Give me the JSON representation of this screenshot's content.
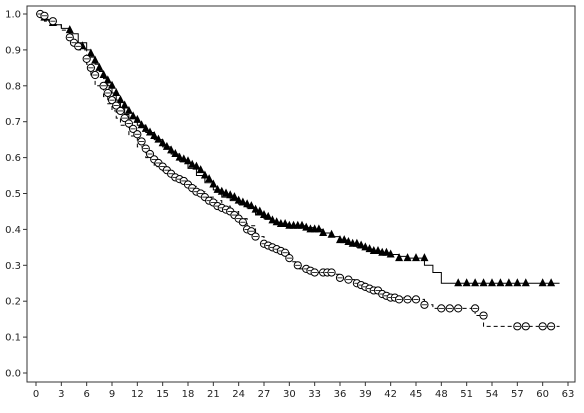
{
  "chart_data": {
    "type": "line",
    "title": "",
    "xlabel": "",
    "ylabel": "",
    "xlim": [
      0,
      63
    ],
    "ylim": [
      0,
      1.0
    ],
    "x_ticks": [
      "0",
      "3",
      "6",
      "9",
      "12",
      "15",
      "18",
      "21",
      "24",
      "27",
      "30",
      "33",
      "36",
      "39",
      "42",
      "45",
      "48",
      "51",
      "54",
      "57",
      "60",
      "63"
    ],
    "y_ticks": [
      "0.0",
      "0.1",
      "0.2",
      "0.3",
      "0.4",
      "0.5",
      "0.6",
      "0.7",
      "0.8",
      "0.9",
      "1.0"
    ],
    "grid": false,
    "series": [
      {
        "style": "solid-step",
        "marker": "triangle",
        "color": "#000000",
        "steps": [
          [
            0,
            1.0
          ],
          [
            0.5,
            0.99
          ],
          [
            1,
            0.985
          ],
          [
            1.5,
            0.98
          ],
          [
            2,
            0.97
          ],
          [
            3,
            0.96
          ],
          [
            4,
            0.945
          ],
          [
            5,
            0.92
          ],
          [
            6,
            0.9
          ],
          [
            6.5,
            0.88
          ],
          [
            7,
            0.86
          ],
          [
            7.5,
            0.84
          ],
          [
            8,
            0.82
          ],
          [
            8.5,
            0.8
          ],
          [
            9,
            0.78
          ],
          [
            9.5,
            0.76
          ],
          [
            10,
            0.74
          ],
          [
            10.5,
            0.72
          ],
          [
            11,
            0.71
          ],
          [
            12,
            0.69
          ],
          [
            13,
            0.67
          ],
          [
            14,
            0.65
          ],
          [
            15,
            0.63
          ],
          [
            16,
            0.61
          ],
          [
            17,
            0.59
          ],
          [
            18,
            0.57
          ],
          [
            19,
            0.55
          ],
          [
            20,
            0.53
          ],
          [
            21,
            0.51
          ],
          [
            22,
            0.49
          ],
          [
            23,
            0.48
          ],
          [
            24,
            0.47
          ],
          [
            25,
            0.46
          ],
          [
            26,
            0.44
          ],
          [
            27,
            0.43
          ],
          [
            28,
            0.42
          ],
          [
            29,
            0.415
          ],
          [
            30,
            0.41
          ],
          [
            32,
            0.405
          ],
          [
            33,
            0.4
          ],
          [
            34,
            0.39
          ],
          [
            35,
            0.38
          ],
          [
            36,
            0.37
          ],
          [
            37,
            0.36
          ],
          [
            38,
            0.35
          ],
          [
            39,
            0.345
          ],
          [
            40,
            0.34
          ],
          [
            41,
            0.335
          ],
          [
            42,
            0.33
          ],
          [
            43,
            0.325
          ],
          [
            44,
            0.32
          ],
          [
            46,
            0.3
          ],
          [
            47,
            0.28
          ],
          [
            48,
            0.25
          ],
          [
            62,
            0.25
          ]
        ],
        "markers": [
          [
            1,
            0.99
          ],
          [
            2,
            0.975
          ],
          [
            4,
            0.955
          ],
          [
            5.5,
            0.91
          ],
          [
            6.5,
            0.89
          ],
          [
            7,
            0.87
          ],
          [
            7.5,
            0.85
          ],
          [
            8,
            0.83
          ],
          [
            8.5,
            0.815
          ],
          [
            9,
            0.8
          ],
          [
            9.5,
            0.78
          ],
          [
            10,
            0.76
          ],
          [
            10.5,
            0.745
          ],
          [
            11,
            0.73
          ],
          [
            11.5,
            0.715
          ],
          [
            12,
            0.705
          ],
          [
            12.5,
            0.69
          ],
          [
            13,
            0.68
          ],
          [
            13.5,
            0.67
          ],
          [
            14,
            0.66
          ],
          [
            14.5,
            0.65
          ],
          [
            15,
            0.64
          ],
          [
            15.5,
            0.63
          ],
          [
            16,
            0.62
          ],
          [
            16.5,
            0.61
          ],
          [
            17,
            0.6
          ],
          [
            17.5,
            0.595
          ],
          [
            18,
            0.59
          ],
          [
            18.5,
            0.58
          ],
          [
            19,
            0.575
          ],
          [
            19.5,
            0.565
          ],
          [
            20,
            0.55
          ],
          [
            20.5,
            0.54
          ],
          [
            21,
            0.525
          ],
          [
            21.5,
            0.51
          ],
          [
            22,
            0.505
          ],
          [
            22.5,
            0.5
          ],
          [
            23,
            0.495
          ],
          [
            23.5,
            0.49
          ],
          [
            24,
            0.48
          ],
          [
            24.5,
            0.475
          ],
          [
            25,
            0.47
          ],
          [
            25.5,
            0.465
          ],
          [
            26,
            0.455
          ],
          [
            26.5,
            0.45
          ],
          [
            27,
            0.44
          ],
          [
            27.5,
            0.435
          ],
          [
            28,
            0.425
          ],
          [
            28.5,
            0.42
          ],
          [
            29,
            0.415
          ],
          [
            29.5,
            0.415
          ],
          [
            30,
            0.41
          ],
          [
            30.5,
            0.41
          ],
          [
            31,
            0.41
          ],
          [
            31.5,
            0.41
          ],
          [
            32,
            0.405
          ],
          [
            32.5,
            0.4
          ],
          [
            33,
            0.4
          ],
          [
            33.5,
            0.4
          ],
          [
            34,
            0.39
          ],
          [
            35,
            0.385
          ],
          [
            36,
            0.37
          ],
          [
            36.5,
            0.37
          ],
          [
            37,
            0.365
          ],
          [
            37.5,
            0.36
          ],
          [
            38,
            0.36
          ],
          [
            38.5,
            0.355
          ],
          [
            39,
            0.35
          ],
          [
            39.5,
            0.345
          ],
          [
            40,
            0.34
          ],
          [
            40.5,
            0.34
          ],
          [
            41,
            0.335
          ],
          [
            41.5,
            0.335
          ],
          [
            42,
            0.33
          ],
          [
            43,
            0.32
          ],
          [
            44,
            0.32
          ],
          [
            45,
            0.32
          ],
          [
            46,
            0.32
          ],
          [
            50,
            0.25
          ],
          [
            51,
            0.25
          ],
          [
            52,
            0.25
          ],
          [
            53,
            0.25
          ],
          [
            54,
            0.25
          ],
          [
            55,
            0.25
          ],
          [
            56,
            0.25
          ],
          [
            57,
            0.25
          ],
          [
            58,
            0.25
          ],
          [
            60,
            0.25
          ],
          [
            61,
            0.25
          ]
        ]
      },
      {
        "style": "dashed-step",
        "marker": "circle",
        "color": "#000000",
        "steps": [
          [
            0,
            1.0
          ],
          [
            0.5,
            0.99
          ],
          [
            1,
            0.98
          ],
          [
            2,
            0.97
          ],
          [
            3,
            0.955
          ],
          [
            4,
            0.925
          ],
          [
            5,
            0.9
          ],
          [
            6,
            0.86
          ],
          [
            6.5,
            0.83
          ],
          [
            7,
            0.8
          ],
          [
            8,
            0.77
          ],
          [
            8.5,
            0.75
          ],
          [
            9,
            0.73
          ],
          [
            9.5,
            0.71
          ],
          [
            10,
            0.69
          ],
          [
            11,
            0.66
          ],
          [
            12,
            0.63
          ],
          [
            13,
            0.6
          ],
          [
            14,
            0.575
          ],
          [
            15,
            0.56
          ],
          [
            16,
            0.545
          ],
          [
            17,
            0.535
          ],
          [
            18,
            0.52
          ],
          [
            19,
            0.505
          ],
          [
            20,
            0.49
          ],
          [
            21,
            0.48
          ],
          [
            22,
            0.465
          ],
          [
            23,
            0.45
          ],
          [
            24,
            0.43
          ],
          [
            25,
            0.41
          ],
          [
            26,
            0.38
          ],
          [
            27,
            0.36
          ],
          [
            28,
            0.35
          ],
          [
            29,
            0.335
          ],
          [
            30,
            0.31
          ],
          [
            31,
            0.29
          ],
          [
            32,
            0.285
          ],
          [
            33,
            0.28
          ],
          [
            35,
            0.275
          ],
          [
            36,
            0.26
          ],
          [
            38,
            0.25
          ],
          [
            39,
            0.23
          ],
          [
            40,
            0.225
          ],
          [
            41,
            0.215
          ],
          [
            42,
            0.21
          ],
          [
            44,
            0.205
          ],
          [
            46,
            0.19
          ],
          [
            47,
            0.18
          ],
          [
            50,
            0.18
          ],
          [
            52,
            0.16
          ],
          [
            53,
            0.13
          ],
          [
            62,
            0.13
          ]
        ],
        "markers": [
          [
            0.5,
            1.0
          ],
          [
            1,
            0.995
          ],
          [
            2,
            0.98
          ],
          [
            4,
            0.935
          ],
          [
            4.5,
            0.92
          ],
          [
            5,
            0.91
          ],
          [
            6,
            0.875
          ],
          [
            6.5,
            0.85
          ],
          [
            7,
            0.83
          ],
          [
            8,
            0.8
          ],
          [
            8.5,
            0.78
          ],
          [
            9,
            0.76
          ],
          [
            9.5,
            0.745
          ],
          [
            10,
            0.73
          ],
          [
            10.5,
            0.71
          ],
          [
            11,
            0.695
          ],
          [
            11.5,
            0.68
          ],
          [
            12,
            0.665
          ],
          [
            12.5,
            0.645
          ],
          [
            13,
            0.625
          ],
          [
            13.5,
            0.61
          ],
          [
            14,
            0.595
          ],
          [
            14.5,
            0.585
          ],
          [
            15,
            0.575
          ],
          [
            15.5,
            0.565
          ],
          [
            16,
            0.555
          ],
          [
            16.5,
            0.545
          ],
          [
            17,
            0.54
          ],
          [
            17.5,
            0.535
          ],
          [
            18,
            0.525
          ],
          [
            18.5,
            0.515
          ],
          [
            19,
            0.505
          ],
          [
            19.5,
            0.5
          ],
          [
            20,
            0.49
          ],
          [
            20.5,
            0.48
          ],
          [
            21,
            0.475
          ],
          [
            21.5,
            0.465
          ],
          [
            22,
            0.46
          ],
          [
            22.5,
            0.455
          ],
          [
            23,
            0.45
          ],
          [
            23.5,
            0.44
          ],
          [
            24,
            0.43
          ],
          [
            24.5,
            0.42
          ],
          [
            25,
            0.4
          ],
          [
            25.5,
            0.395
          ],
          [
            26,
            0.38
          ],
          [
            27,
            0.36
          ],
          [
            27.5,
            0.355
          ],
          [
            28,
            0.35
          ],
          [
            28.5,
            0.345
          ],
          [
            29,
            0.34
          ],
          [
            29.5,
            0.335
          ],
          [
            30,
            0.32
          ],
          [
            31,
            0.3
          ],
          [
            32,
            0.29
          ],
          [
            32.5,
            0.285
          ],
          [
            33,
            0.28
          ],
          [
            34,
            0.28
          ],
          [
            34.5,
            0.28
          ],
          [
            35,
            0.28
          ],
          [
            36,
            0.265
          ],
          [
            37,
            0.26
          ],
          [
            38,
            0.25
          ],
          [
            38.5,
            0.245
          ],
          [
            39,
            0.24
          ],
          [
            39.5,
            0.235
          ],
          [
            40,
            0.23
          ],
          [
            40.5,
            0.23
          ],
          [
            41,
            0.22
          ],
          [
            41.5,
            0.215
          ],
          [
            42,
            0.21
          ],
          [
            42.5,
            0.21
          ],
          [
            43,
            0.205
          ],
          [
            44,
            0.205
          ],
          [
            45,
            0.205
          ],
          [
            46,
            0.19
          ],
          [
            48,
            0.18
          ],
          [
            49,
            0.18
          ],
          [
            50,
            0.18
          ],
          [
            52,
            0.18
          ],
          [
            53,
            0.16
          ],
          [
            57,
            0.13
          ],
          [
            58,
            0.13
          ],
          [
            60,
            0.13
          ],
          [
            61,
            0.13
          ]
        ]
      }
    ]
  }
}
